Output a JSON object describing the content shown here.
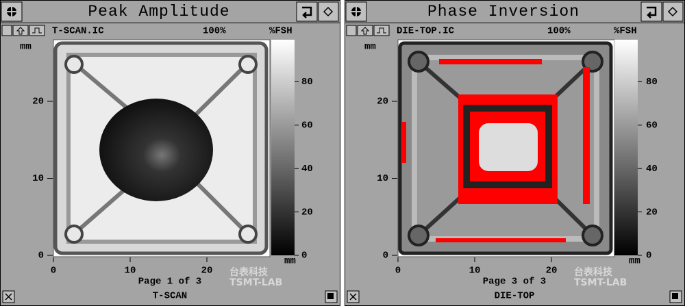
{
  "panels": [
    {
      "title": "Peak Amplitude",
      "file": "T-SCAN.IC",
      "gain": "100%",
      "unit": "%FSH",
      "y_axis_label": "mm",
      "x_axis_label": "mm",
      "y_ticks": [
        0,
        10,
        20
      ],
      "x_ticks": [
        0,
        10,
        20
      ],
      "scale_ticks": [
        0,
        20,
        40,
        60,
        80
      ],
      "page": "Page 1 of 3",
      "name": "T-SCAN",
      "watermark": [
        "台表科技",
        "TSMT-LAB"
      ]
    },
    {
      "title": "Phase Inversion",
      "file": "DIE-TOP.IC",
      "gain": "100%",
      "unit": "%FSH",
      "y_axis_label": "mm",
      "x_axis_label": "mm",
      "y_ticks": [
        0,
        10,
        20
      ],
      "x_ticks": [
        0,
        10,
        20
      ],
      "scale_ticks": [
        0,
        20,
        40,
        60,
        80
      ],
      "page": "Page 3 of 3",
      "name": "DIE-TOP",
      "watermark": [
        "台表科技",
        "TSMT-LAB"
      ]
    }
  ]
}
